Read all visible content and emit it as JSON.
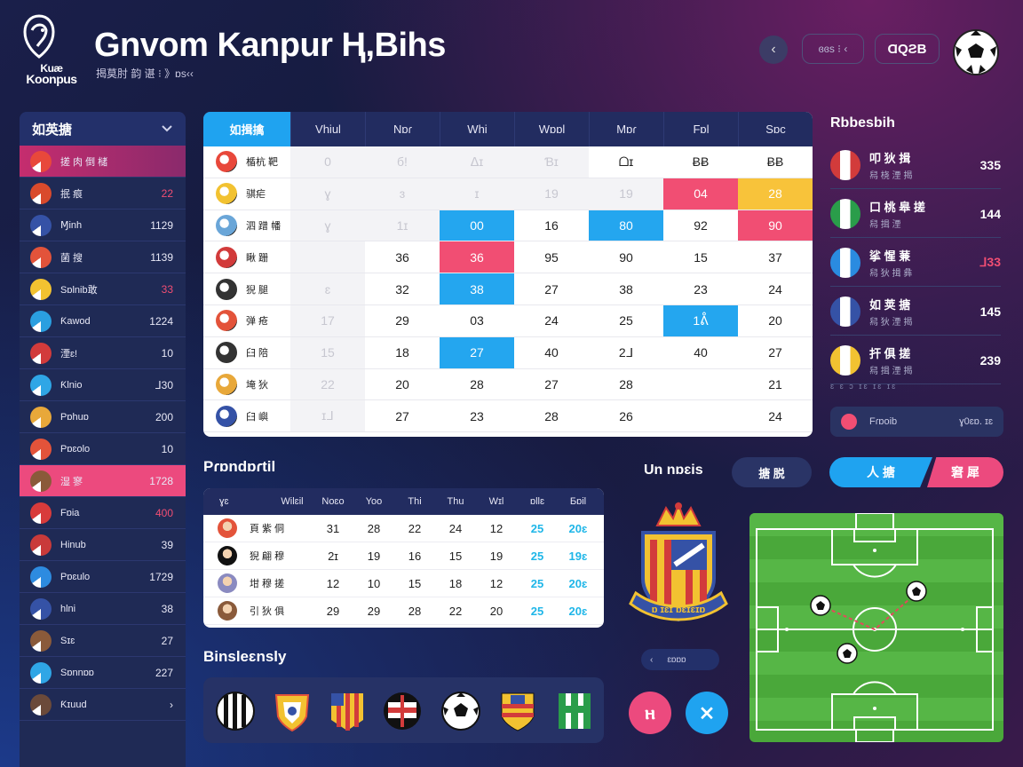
{
  "header": {
    "logo_text_1": "Kuæ",
    "logo_text_2": "Koonpus",
    "title": "Gnvom Kanpur Ⱨ,Bihs",
    "subtitle": "揭莫肘 韵 谌 ⁝ 》ɒs‹‹",
    "back_icon": "‹",
    "pill1": "ɞɞs ⁝ ‹",
    "pill2": "ⱭQƧB"
  },
  "sidebar": {
    "title": "如英搪",
    "items": [
      {
        "name": "搓 肉 倒 槠",
        "value": "",
        "color": "#e8483b",
        "state": "active"
      },
      {
        "name": "抿 痕",
        "value": "22",
        "color": "#d94a2c",
        "value_color": "#f14e73"
      },
      {
        "name": "Ɱinh",
        "value": "1129",
        "color": "#3552a6"
      },
      {
        "name": "菌 搜",
        "value": "1139",
        "color": "#e3533a"
      },
      {
        "name": "Sɒlnib敢",
        "value": "33",
        "color": "#f2c231",
        "value_color": "#f14e73"
      },
      {
        "name": "Ƙawod",
        "value": "1224",
        "color": "#2a9fe0"
      },
      {
        "name": "湮ɛ!",
        "value": "10",
        "color": "#d23b3b"
      },
      {
        "name": "Ƙlnio",
        "value": "ᒧ30",
        "color": "#2fa6e6"
      },
      {
        "name": "Pɒhuɒ",
        "value": "200",
        "color": "#e8a83a"
      },
      {
        "name": "Pɒɛolo",
        "value": "10",
        "color": "#e3533a"
      },
      {
        "name": "湿 寥",
        "value": "1728",
        "color": "#8a5a3a",
        "state": "hot"
      },
      {
        "name": "Fɒia",
        "value": "400",
        "color": "#d83b3b",
        "value_color": "#f14e73"
      },
      {
        "name": "Hinub",
        "value": "39",
        "color": "#c93a3a"
      },
      {
        "name": "Pɒɛulo",
        "value": "1729",
        "color": "#2d8be0"
      },
      {
        "name": "hlni",
        "value": "38",
        "color": "#3552a6"
      },
      {
        "name": "Sɪɛ",
        "value": "27",
        "color": "#8a5a3a"
      },
      {
        "name": "Sɒnnɒɒ",
        "value": "227",
        "color": "#2fa6e6"
      },
      {
        "name": "Ƙɪuud",
        "value": "›",
        "color": "#6b4a3a"
      }
    ]
  },
  "main_table": {
    "header": [
      "如揖擒",
      "Vhiul",
      "Nɒɾ",
      "Whi",
      "Wɒɒl",
      "Mɒɾ",
      "Fɒl",
      "Sɒc"
    ],
    "rows": [
      {
        "team": "楯杭 靶",
        "color": "#e8483b",
        "cells": [
          "0",
          "б!",
          "ᐃɪ",
          "Ɓɪ",
          "ᗝɪ",
          "ɃɃ",
          "ɃɃ"
        ],
        "styles": [
          "dim",
          "dim",
          "dim",
          "dim",
          "",
          "",
          ""
        ]
      },
      {
        "team": "骐疟",
        "color": "#f2c231",
        "cells": [
          "ɣ",
          "ɜ",
          "ɪ",
          "19",
          "19",
          "04",
          "28"
        ],
        "styles": [
          "dim",
          "dim",
          "dim",
          "dim",
          "dim",
          "red",
          "yel"
        ]
      },
      {
        "team": "泗 蹭 幡",
        "color": "#6aa6d8",
        "cells": [
          "ɣ",
          "1ɪ",
          "00",
          "16",
          "80",
          "92",
          "90"
        ],
        "styles": [
          "dim",
          "dim",
          "blue",
          "",
          "blue",
          "",
          "red"
        ]
      },
      {
        "team": "瞅 跚",
        "color": "#d23b3b",
        "cells": [
          "",
          "36",
          "36",
          "95",
          "90",
          "15",
          "37"
        ],
        "styles": [
          "dim",
          "",
          "red",
          "",
          "",
          "",
          ""
        ]
      },
      {
        "team": "猊 腿",
        "color": "#333333",
        "cells": [
          "ɛ",
          "32",
          "38",
          "27",
          "38",
          "23",
          "24"
        ],
        "styles": [
          "dim",
          "",
          "blue",
          "",
          "",
          "",
          ""
        ]
      },
      {
        "team": "弹 疮",
        "color": "#e3533a",
        "cells": [
          "17",
          "29",
          "03",
          "24",
          "25",
          "1ᕔ",
          "20"
        ],
        "styles": [
          "dim",
          "",
          "",
          "",
          "",
          "blue",
          ""
        ]
      },
      {
        "team": "臼 陪",
        "color": "#333333",
        "cells": [
          "15",
          "18",
          "27",
          "40",
          "2ᒧ",
          "40",
          "27"
        ],
        "styles": [
          "dim",
          "",
          "blue",
          "",
          "",
          "",
          ""
        ]
      },
      {
        "team": "埯 狄",
        "color": "#e8a83a",
        "cells": [
          "22",
          "20",
          "28",
          "27",
          "28",
          "",
          "21"
        ],
        "styles": [
          "dim",
          "",
          "",
          "",
          "",
          "",
          ""
        ]
      },
      {
        "team": "臼 嶼",
        "color": "#3552a6",
        "cells": [
          "ɪᒧ",
          "27",
          "23",
          "28",
          "26",
          "",
          "24"
        ],
        "styles": [
          "dim",
          "",
          "",
          "",
          "",
          "",
          ""
        ]
      }
    ]
  },
  "standings": {
    "title": "Rbbesbih",
    "items": [
      {
        "t1": "叩 狄 揖",
        "t2": "舄 桡 湮 揭",
        "value": "335",
        "color": "#d23b3b"
      },
      {
        "t1": "口 桃 皋 搓",
        "t2": "舄 揖 湮",
        "value": "144",
        "color": "#2a9d4a"
      },
      {
        "t1": "挲 惺 蒹",
        "t2": "舄 狄 揖 彝",
        "value": "ᒧ33",
        "color": "#2a8be0",
        "value_color": "#f14e73"
      },
      {
        "t1": "如 荚 搪",
        "t2": "舄 狄 湮 揭",
        "value": "145",
        "color": "#3552a6"
      },
      {
        "t1": "扞 俱 搓",
        "t2": "舄 揖 湮 揭",
        "value": "239",
        "color": "#f2c231"
      }
    ],
    "footer": "ɛ ɛ ɔ ɪɛ ɪɛ ɪɛ",
    "bar_label": "Fɾɒoib",
    "bar_value": "ɣ0ɛɒ. ɪɛ"
  },
  "small_table": {
    "title": "Pɾɒndɒɾtil",
    "header": [
      "ɣɛ",
      "Wilɛil",
      "Noɛo",
      "Yoo",
      "Thi",
      "Thu",
      "Wɪl",
      "ɒllɛ",
      "Ƃɒil"
    ],
    "rows": [
      {
        "team": "頁 紫 侗",
        "color": "#e3533a",
        "cells": [
          "31",
          "28",
          "22",
          "24",
          "12",
          "25",
          "20ɛ"
        ]
      },
      {
        "team": "猊 翩 穆",
        "color": "#111111",
        "cells": [
          "2ɪ",
          "19",
          "16",
          "15",
          "19",
          "25",
          "19ɛ"
        ]
      },
      {
        "team": "坩 穆 搓",
        "color": "#8a8ac0",
        "cells": [
          "12",
          "10",
          "15",
          "18",
          "12",
          "25",
          "20ɛ"
        ]
      },
      {
        "team": "引 狄 俱",
        "color": "#8a5a3a",
        "cells": [
          "29",
          "29",
          "28",
          "22",
          "20",
          "25",
          "20ɛ"
        ]
      }
    ]
  },
  "badges": {
    "title": "Binsleɛnsly"
  },
  "mid": {
    "label": "Un nɒɛis",
    "button": "搪 脱",
    "toggle1": "人 搪",
    "toggle2": "窘 犀",
    "crest_text": "ɒ ɪɛɪ ɒɛɪɛɪɒ",
    "crest_pill_icon": "‹",
    "crest_pill_value": "ɛɒɒɒ",
    "circ1": "ⲏ",
    "circ2": "⨯"
  },
  "colors": {
    "accent_blue": "#1fa3f0",
    "accent_pink": "#ec4a7e",
    "panel": "#1f2a55",
    "pitch_green": "#4aa83a"
  },
  "icons": {
    "back": "back-arrow-icon",
    "ball": "soccer-ball-icon",
    "chevron": "chevron-down-icon"
  }
}
